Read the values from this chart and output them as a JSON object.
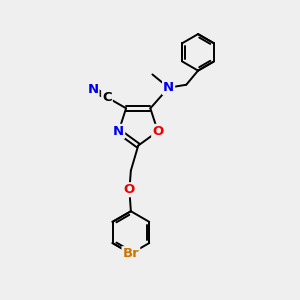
{
  "bg_color": "#efefef",
  "atom_colors": {
    "C": "#000000",
    "N": "#0000ee",
    "O": "#ee0000",
    "Br": "#cc7700",
    "default": "#000000"
  },
  "bond_color": "#000000",
  "bond_width": 1.4,
  "figsize": [
    3.0,
    3.0
  ],
  "dpi": 100,
  "xlim": [
    0,
    10
  ],
  "ylim": [
    0,
    10
  ]
}
